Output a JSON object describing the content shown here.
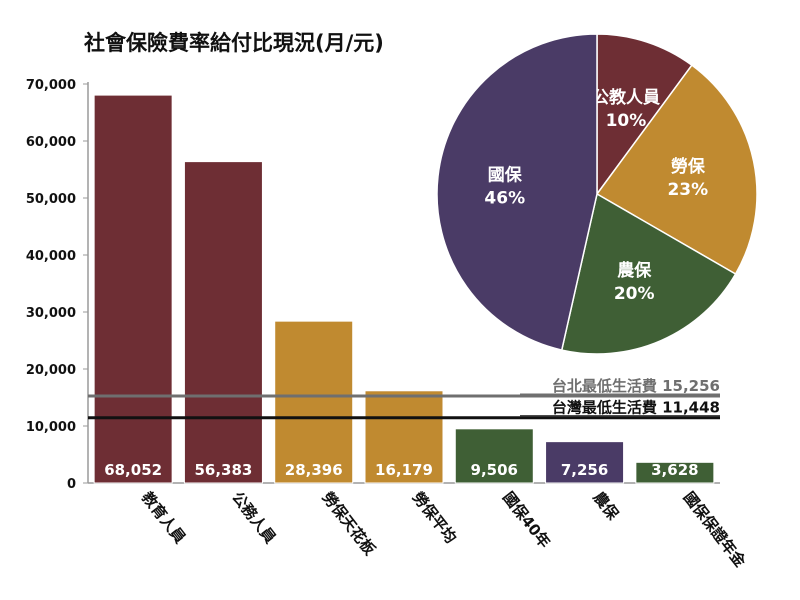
{
  "chart_data": [
    {
      "type": "bar",
      "title": "社會保險費率給付比現況(月/元)",
      "xlabel": "",
      "ylabel": "",
      "ylim": [
        0,
        70000
      ],
      "yticks": [
        "0",
        "10,000",
        "20,000",
        "30,000",
        "40,000",
        "50,000",
        "60,000",
        "70,000"
      ],
      "categories": [
        "教育人員",
        "公務人員",
        "勞保天花板",
        "勞保平均",
        "國保40年",
        "農保",
        "國保保證年金"
      ],
      "values": [
        68052,
        56383,
        28396,
        16179,
        9506,
        7256,
        3628
      ],
      "value_labels": [
        "68,052",
        "56,383",
        "28,396",
        "16,179",
        "9,506",
        "7,256",
        "3,628"
      ],
      "bar_colors": [
        "#6e2e34",
        "#6e2e34",
        "#c08a30",
        "#c08a30",
        "#3f5f35",
        "#4a3b66",
        "#3f5f35"
      ],
      "grid": false,
      "reference_lines": [
        {
          "label": "台北最低生活費 15,256",
          "value": 15256,
          "color": "#6f6f6f"
        },
        {
          "label": "台灣最低生活費 11,448",
          "value": 11448,
          "color": "#111111"
        }
      ]
    },
    {
      "type": "pie",
      "slices": [
        {
          "label": "公教人員",
          "pct": "10%",
          "value": 10,
          "color": "#6e2e34"
        },
        {
          "label": "勞保",
          "pct": "23%",
          "value": 23,
          "color": "#c08a30"
        },
        {
          "label": "農保",
          "pct": "20%",
          "value": 20,
          "color": "#3f5f35"
        },
        {
          "label": "國保",
          "pct": "46%",
          "value": 46,
          "color": "#4a3b66"
        }
      ]
    }
  ]
}
